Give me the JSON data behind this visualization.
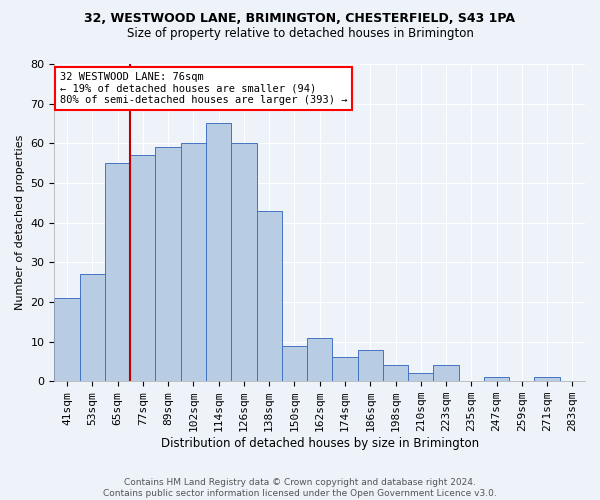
{
  "title1": "32, WESTWOOD LANE, BRIMINGTON, CHESTERFIELD, S43 1PA",
  "title2": "Size of property relative to detached houses in Brimington",
  "xlabel": "Distribution of detached houses by size in Brimington",
  "ylabel": "Number of detached properties",
  "categories": [
    "41sqm",
    "53sqm",
    "65sqm",
    "77sqm",
    "89sqm",
    "102sqm",
    "114sqm",
    "126sqm",
    "138sqm",
    "150sqm",
    "162sqm",
    "174sqm",
    "186sqm",
    "198sqm",
    "210sqm",
    "223sqm",
    "235sqm",
    "247sqm",
    "259sqm",
    "271sqm",
    "283sqm"
  ],
  "values": [
    21,
    27,
    55,
    57,
    59,
    60,
    65,
    60,
    43,
    9,
    11,
    6,
    8,
    4,
    2,
    4,
    0,
    1,
    0,
    1,
    0
  ],
  "bar_color": "#b8cce4",
  "bar_edge_color": "#4472c4",
  "ylim": [
    0,
    80
  ],
  "yticks": [
    0,
    10,
    20,
    30,
    40,
    50,
    60,
    70,
    80
  ],
  "vline_index": 2.5,
  "annotation_line1": "32 WESTWOOD LANE: 76sqm",
  "annotation_line2": "← 19% of detached houses are smaller (94)",
  "annotation_line3": "80% of semi-detached houses are larger (393) →",
  "annotation_box_color": "white",
  "annotation_box_edge_color": "red",
  "vline_color": "#c00000",
  "footer": "Contains HM Land Registry data © Crown copyright and database right 2024.\nContains public sector information licensed under the Open Government Licence v3.0.",
  "background_color": "#eef2f9",
  "grid_color": "white"
}
